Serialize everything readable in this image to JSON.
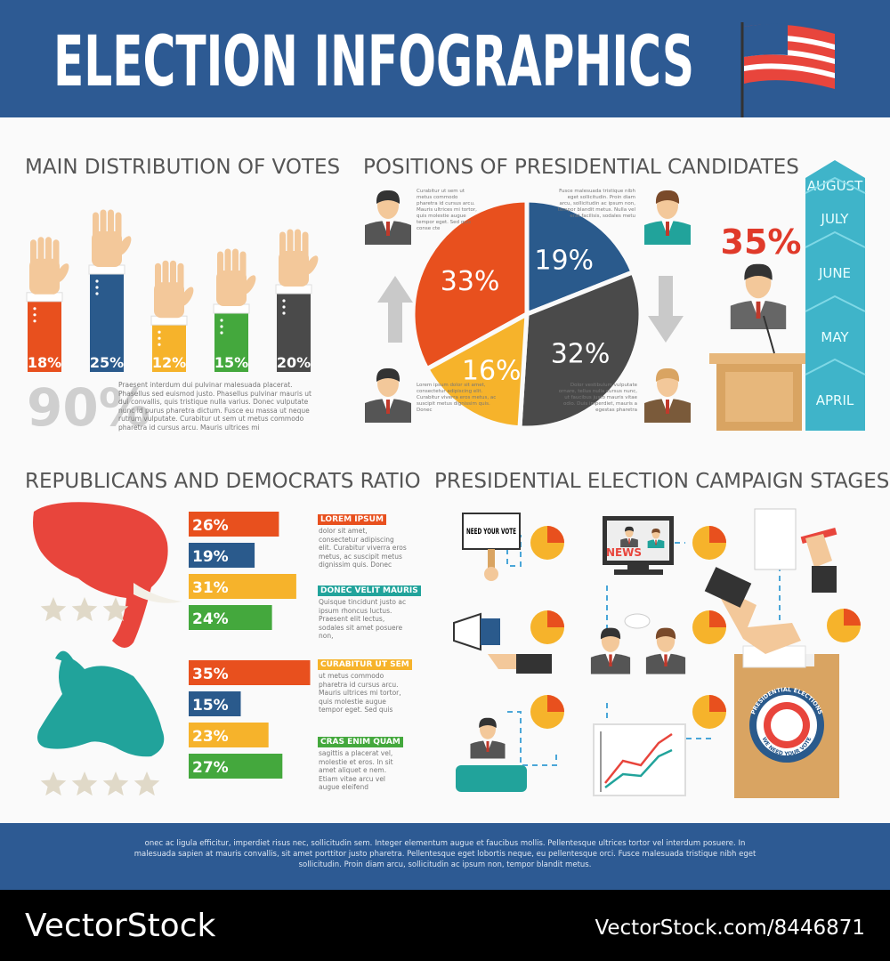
{
  "header": {
    "title": "ELECTION INFOGRAPHICS"
  },
  "votes": {
    "title": "MAIN DISTRIBUTION OF VOTES",
    "values": [
      18,
      25,
      12,
      15,
      20
    ],
    "value_labels": [
      "18%",
      "25%",
      "12%",
      "15%",
      "20%"
    ],
    "colors": [
      "#e8501e",
      "#2a5a8c",
      "#f6b32b",
      "#44a83d",
      "#4a4a4a"
    ],
    "total_label": "90%",
    "text": "Praesent interdum dui pulvinar malesuada placerat. Phasellus sed euismod justo. Phasellus pulvinar mauris ut dui convallis, quis tristique nulla varius. Donec vulputate nunc id purus pharetra dictum. Fusce eu massa ut neque rutrum vulputate. Curabitur ut sem ut metus commodo pharetra id cursus arcu. Mauris ultrices mi"
  },
  "positions": {
    "title": "POSITIONS OF PRESIDENTIAL CANDIDATES",
    "pie": {
      "type": "pie",
      "values": [
        33,
        19,
        32,
        16
      ],
      "value_labels": [
        "33%",
        "19%",
        "32%",
        "16%"
      ],
      "colors": [
        "#e8501e",
        "#2a5a8c",
        "#4a4a4a",
        "#f6b32b"
      ]
    },
    "notes": [
      "Curabitur ut sem ut metus commodo pharetra id cursus arcu. Mauris ultrices mi tortor, quis molestie augue tempor eget. Sed quis conse cte",
      "Fusce malesuada tristique nibh eget sollicitudin. Proin diam arcu, sollicitudin ac ipsum non, tempor blandit metus. Nulla vel erat facilisis, sodales metu",
      "Lorem ipsum dolor sit amet, consectetur adipiscing elit. Curabitur viverra eros metus, ac suscipit metus dignissim quis. Donec",
      "Dolor vestibulum vulputate ornare, tellus nulla cursus nunc, ut faucibus justo mauris vitae odio. Duis imperdiet, mauris a egestas pharetra"
    ],
    "highlight": "35%",
    "months": [
      "AUGUST",
      "JULY",
      "JUNE",
      "MAY",
      "APRIL"
    ]
  },
  "ratio": {
    "title": "REPUBLICANS AND DEMOCRATS RATIO",
    "colors": [
      "#e8501e",
      "#2a5a8c",
      "#f6b32b",
      "#44a83d"
    ],
    "groups": [
      {
        "values": [
          26,
          19,
          31,
          24
        ],
        "value_labels": [
          "26%",
          "19%",
          "31%",
          "24%"
        ]
      },
      {
        "values": [
          35,
          15,
          23,
          27
        ],
        "value_labels": [
          "35%",
          "15%",
          "23%",
          "27%"
        ]
      }
    ],
    "notes": [
      {
        "heading": "LOREM IPSUM",
        "text": "dolor sit amet, consectetur adipiscing elit. Curabitur viverra eros metus, ac suscipit metus dignissim quis. Donec"
      },
      {
        "heading": "DONEC VELIT MAURIS",
        "text": "Quisque tincidunt justo ac ipsum rhoncus luctus. Praesent elit lectus, sodales sit amet posuere non,"
      },
      {
        "heading": "CURABITUR UT SEM",
        "text": "ut metus commodo pharetra id cursus arcu. Mauris ultrices mi tortor, quis molestie augue tempor eget. Sed quis"
      },
      {
        "heading": "CRAS ENIM QUAM",
        "text": "sagittis a placerat vel, molestie et eros. In sit amet aliquet e nem. Etiam vitae arcu vel augue eleifend"
      }
    ]
  },
  "stages": {
    "title": "PRESIDENTIAL ELECTION CAMPAIGN STAGES",
    "sign": "NEED YOUR VOTE",
    "news": "NEWS",
    "badge_top": "PRESIDENTIAL ELECTIONS",
    "badge_bottom": "WE NEED YOUR VOTE"
  },
  "footer": {
    "text": "onec ac ligula efficitur, imperdiet risus nec, sollicitudin sem. Integer elementum augue et faucibus mollis. Pellentesque ultrices tortor vel interdum posuere. In malesuada sapien at mauris convallis, sit amet porttitor justo pharetra. Pellentesque eget lobortis neque, eu pellentesque orci. Fusce malesuada tristique nibh eget sollicitudin. Proin diam arcu, sollicitudin ac ipsum non, tempor blandit metus."
  },
  "watermark": {
    "left": "VectorStock",
    "right": "VectorStock.com/8446871"
  }
}
